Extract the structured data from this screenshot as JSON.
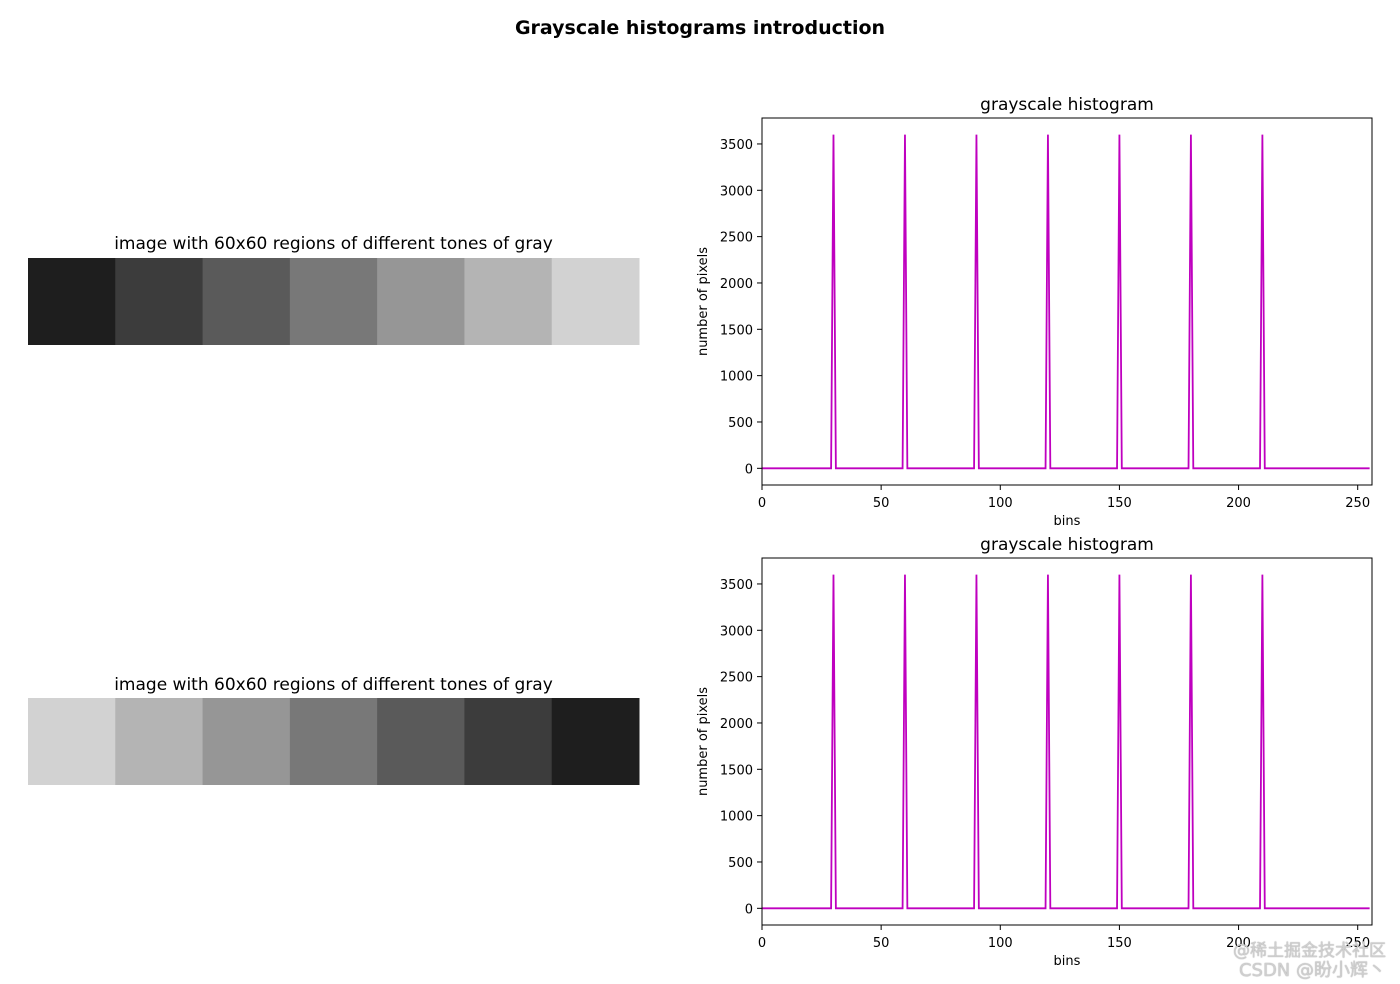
{
  "figure": {
    "suptitle": "Grayscale histograms introduction",
    "watermark_line1": "@稀土掘金技术社区",
    "watermark_line2": "CSDN @盼小辉丶"
  },
  "images": [
    {
      "title": "image with 60x60 regions of different tones of gray",
      "regions": [
        "#1e1e1e",
        "#3c3c3c",
        "#5a5a5a",
        "#787878",
        "#969696",
        "#b4b4b4",
        "#d2d2d2"
      ]
    },
    {
      "title": "image with 60x60 regions of different tones of gray",
      "regions": [
        "#d2d2d2",
        "#b4b4b4",
        "#969696",
        "#787878",
        "#5a5a5a",
        "#3c3c3c",
        "#1e1e1e"
      ]
    }
  ],
  "chart_data": [
    {
      "type": "line",
      "title": "grayscale histogram",
      "xlabel": "bins",
      "ylabel": "number of pixels",
      "xlim": [
        0,
        256
      ],
      "ylim": [
        -180,
        3780
      ],
      "xticks": [
        0,
        50,
        100,
        150,
        200,
        250
      ],
      "yticks": [
        0,
        500,
        1000,
        1500,
        2000,
        2500,
        3000,
        3500
      ],
      "color": "#bf00bf",
      "peaks": [
        30,
        60,
        90,
        120,
        150,
        180,
        210
      ],
      "peak_value": 3600,
      "series": [
        {
          "name": "histogram",
          "bins": 256,
          "nonzero": {
            "30": 3600,
            "60": 3600,
            "90": 3600,
            "120": 3600,
            "150": 3600,
            "180": 3600,
            "210": 3600
          }
        }
      ]
    },
    {
      "type": "line",
      "title": "grayscale histogram",
      "xlabel": "bins",
      "ylabel": "number of pixels",
      "xlim": [
        0,
        256
      ],
      "ylim": [
        -180,
        3780
      ],
      "xticks": [
        0,
        50,
        100,
        150,
        200,
        250
      ],
      "yticks": [
        0,
        500,
        1000,
        1500,
        2000,
        2500,
        3000,
        3500
      ],
      "color": "#bf00bf",
      "peaks": [
        30,
        60,
        90,
        120,
        150,
        180,
        210
      ],
      "peak_value": 3600,
      "series": [
        {
          "name": "histogram",
          "bins": 256,
          "nonzero": {
            "30": 3600,
            "60": 3600,
            "90": 3600,
            "120": 3600,
            "150": 3600,
            "180": 3600,
            "210": 3600
          }
        }
      ]
    }
  ]
}
